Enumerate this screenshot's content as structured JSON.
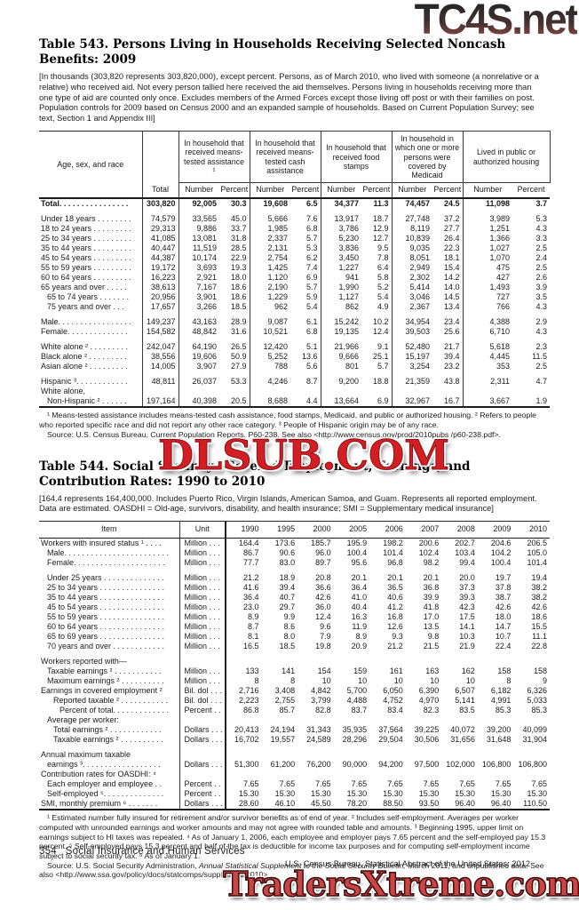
{
  "watermarks": {
    "top": "TC4S.net",
    "middle": "DLSUB.COM",
    "bottom": "TradersXtreme.com"
  },
  "table543": {
    "title": "Table 543. Persons Living in Households Receiving Selected Noncash Benefits: 2009",
    "note": "[In thousands (303,820 represents 303,820,000), except percent. Persons, as of March 2010, who lived with someone (a nonrelative or a relative) who received aid. Not every person tallied here received the aid themselves. Persons living in households receiving more than one type of aid are counted only once. Excludes members of the Armed Forces except those living off post or with their families on post. Population controls for 2009 based on Census 2000 and an expanded sample of households. Based on Current Population Survey; see text, Section 1 and Appendix III]",
    "header": {
      "stub": "Age, sex, and race",
      "total": "Total",
      "groups": [
        "In household that received means-tested assistance ¹",
        "In household that received means-tested cash assistance",
        "In household that received food stamps",
        "In household in which one or more persons were covered by Medicaid",
        "Lived in public or authorized housing"
      ],
      "sub_number": "Number",
      "sub_percent": "Percent"
    },
    "rows": [
      {
        "label": "Total. . . . . . . . . . . . . . . .",
        "cls": "bold",
        "cells": [
          "303,820",
          "92,005",
          "30.3",
          "19,608",
          "6.5",
          "34,377",
          "11.3",
          "74,457",
          "24.5",
          "11,098",
          "3.7"
        ]
      },
      {
        "label": "Under 18 years . . . . . . . .",
        "cls": "gap",
        "cells": [
          "74,579",
          "33,565",
          "45.0",
          "5,666",
          "7.6",
          "13,917",
          "18.7",
          "27,748",
          "37.2",
          "3,989",
          "5.3"
        ]
      },
      {
        "label": "18 to 24 years . . . . . . . . .",
        "cls": "",
        "cells": [
          "29,313",
          "9,886",
          "33.7",
          "1,985",
          "6.8",
          "3,786",
          "12.9",
          "8,119",
          "27.7",
          "1,251",
          "4.3"
        ]
      },
      {
        "label": "25 to 34 years . . . . . . . . .",
        "cls": "",
        "cells": [
          "41,085",
          "13,081",
          "31.8",
          "2,337",
          "5.7",
          "5,230",
          "12.7",
          "10,839",
          "26.4",
          "1,366",
          "3.3"
        ]
      },
      {
        "label": "35 to 44 years . . . . . . . . .",
        "cls": "",
        "cells": [
          "40,447",
          "11,519",
          "28.5",
          "2,131",
          "5.3",
          "3,836",
          "9.5",
          "9,035",
          "22.3",
          "1,027",
          "2.5"
        ]
      },
      {
        "label": "45 to 54 years . . . . . . . . .",
        "cls": "",
        "cells": [
          "44,387",
          "10,174",
          "22.9",
          "2,754",
          "6.2",
          "3,450",
          "7.8",
          "8,051",
          "18.1",
          "1,070",
          "2.4"
        ]
      },
      {
        "label": "55 to 59 years . . . . . . . . .",
        "cls": "",
        "cells": [
          "19,172",
          "3,693",
          "19.3",
          "1,425",
          "7.4",
          "1,227",
          "6.4",
          "2,949",
          "15.4",
          "475",
          "2.5"
        ]
      },
      {
        "label": "60 to 64 years . . . . . . . . .",
        "cls": "",
        "cells": [
          "16,223",
          "2,921",
          "18.0",
          "1,120",
          "6.9",
          "941",
          "5.8",
          "2,302",
          "14.2",
          "427",
          "2.6"
        ]
      },
      {
        "label": "65 years and over . . . . .",
        "cls": "",
        "cells": [
          "38,613",
          "7,167",
          "18.6",
          "2,190",
          "5.7",
          "1,990",
          "5.2",
          "5,414",
          "14.0",
          "1,493",
          "3.9"
        ]
      },
      {
        "label": "65 to 74 years . . . . . . .",
        "cls": "i1",
        "cells": [
          "20,956",
          "3,901",
          "18.6",
          "1,229",
          "5.9",
          "1,127",
          "5.4",
          "3,046",
          "14.5",
          "727",
          "3.5"
        ]
      },
      {
        "label": "75 years and over . . .",
        "cls": "i1",
        "cells": [
          "17,657",
          "3,266",
          "18.5",
          "962",
          "5.4",
          "862",
          "4.9",
          "2,367",
          "13.4",
          "766",
          "4.3"
        ]
      },
      {
        "label": "Male. . . . . . . . . . . . . . . . .",
        "cls": "gap",
        "cells": [
          "149,237",
          "43,163",
          "28.9",
          "9,087",
          "6.1",
          "15,242",
          "10.2",
          "34,954",
          "23.4",
          "4,388",
          "2.9"
        ]
      },
      {
        "label": "Female. . . . . . . . . . . . . .",
        "cls": "",
        "cells": [
          "154,582",
          "48,842",
          "31.6",
          "10,521",
          "6.8",
          "19,135",
          "12.4",
          "39,503",
          "25.6",
          "6,710",
          "4.3"
        ]
      },
      {
        "label": "White alone ² . . . . . . . . .",
        "cls": "gap",
        "cells": [
          "242,047",
          "64,190",
          "26.5",
          "12,420",
          "5.1",
          "21,966",
          "9.1",
          "52,480",
          "21.7",
          "5,618",
          "2.3"
        ]
      },
      {
        "label": "Black alone ² . . . . . . . . .",
        "cls": "",
        "cells": [
          "38,556",
          "19,606",
          "50.9",
          "5,252",
          "13.6",
          "9,666",
          "25.1",
          "15,197",
          "39.4",
          "4,445",
          "11.5"
        ]
      },
      {
        "label": "Asian alone ² . . . . . . . . .",
        "cls": "",
        "cells": [
          "14,005",
          "3,907",
          "27.9",
          "788",
          "5.6",
          "801",
          "5.7",
          "3,254",
          "23.2",
          "353",
          "2.5"
        ]
      },
      {
        "label": "Hispanic ³. . . . . . . . . . . .",
        "cls": "gap",
        "cells": [
          "48,811",
          "26,037",
          "53.3",
          "4,246",
          "8.7",
          "9,200",
          "18.8",
          "21,359",
          "43.8",
          "2,311",
          "4.7"
        ]
      },
      {
        "label": "White alone,",
        "cls": "",
        "cells": [
          "",
          "",
          "",
          "",
          "",
          "",
          "",
          "",
          "",
          "",
          ""
        ]
      },
      {
        "label": "Non-Hispanic ² . . . . . .",
        "cls": "i1",
        "cells": [
          "197,164",
          "40,398",
          "20.5",
          "8,688",
          "4.4",
          "13,664",
          "6.9",
          "32,967",
          "16.7",
          "3,667",
          "1.9"
        ]
      }
    ],
    "footnotes": "¹ Means-tested assistance includes means-tested cash assistance, food stamps, Medicaid, and public or authorized housing. ² Refers to people who reported specific race and did not report any other race category. ³ People of Hispanic origin may be of any race.",
    "source": "Source: U.S. Census Bureau, Current Population Reports,  P60-238. See also <http://www.census.gov/prod/2010pubs /p60-238.pdf>."
  },
  "table544": {
    "title": "Table 544. Social Security—Covered Employment, Earnings, and Contribution Rates: 1990 to 2010",
    "note": "[164.4 represents 164,400,000. Includes Puerto Rico, Virgin Islands, American Samoa, and Guam. Represents all reported employment. Data are estimated. OASDHI = Old-age, survivors, disability, and health insurance; SMI = Supplementary medical insurance]",
    "header": {
      "item": "Item",
      "unit": "Unit",
      "years": [
        "1990",
        "1995",
        "2000",
        "2005",
        "2006",
        "2007",
        "2008",
        "2009",
        "2010"
      ]
    },
    "rows": [
      {
        "label": "Workers with insured status ¹ . . . .",
        "unit": "Million . . .",
        "cls": "",
        "cells": [
          "164.4",
          "173.6",
          "185.7",
          "195.9",
          "198.2",
          "200.6",
          "202.7",
          "204.6",
          "206.5"
        ]
      },
      {
        "label": "Male. . . . . . . . . . . . . . . . . . . . . . . .",
        "unit": "Million . . .",
        "cls": "i1",
        "cells": [
          "86.7",
          "90.6",
          "96.0",
          "100.4",
          "101.4",
          "102.4",
          "103.4",
          "104.2",
          "105.0"
        ]
      },
      {
        "label": "Female. . . . . . . . . . . . . . . . . . . . .",
        "unit": "Million . . .",
        "cls": "i1",
        "cells": [
          "77.7",
          "83.0",
          "89.7",
          "95.6",
          "96.8",
          "98.2",
          "99.4",
          "100.4",
          "101.4"
        ]
      },
      {
        "label": "Under 25 years . . . . . . . . . . . . . .",
        "unit": "Million . . .",
        "cls": "i1 gap",
        "cells": [
          "21.2",
          "18.9",
          "20.8",
          "20.1",
          "20.1",
          "20.1",
          "20.0",
          "19.7",
          "19.4"
        ]
      },
      {
        "label": "25 to 34 years . . . . . . . . . . . . . . .",
        "unit": "Million . . .",
        "cls": "i1",
        "cells": [
          "41.6",
          "39.4",
          "36.6",
          "36.4",
          "36.5",
          "36.8",
          "37.3",
          "37.8",
          "38.2"
        ]
      },
      {
        "label": "35 to 44 years . . . . . . . . . . . . . . .",
        "unit": "Million . . .",
        "cls": "i1",
        "cells": [
          "36.4",
          "40.7",
          "42.6",
          "41.0",
          "40.6",
          "39.9",
          "39.3",
          "38.7",
          "38.2"
        ]
      },
      {
        "label": "45 to 54 years . . . . . . . . . . . . . . .",
        "unit": "Million . . .",
        "cls": "i1",
        "cells": [
          "23.0",
          "29.7",
          "36.0",
          "40.4",
          "41.2",
          "41.8",
          "42.3",
          "42.6",
          "42.6"
        ]
      },
      {
        "label": "55 to 59 years . . . . . . . . . . . . . . .",
        "unit": "Million . . .",
        "cls": "i1",
        "cells": [
          "8.9",
          "9.9",
          "12.4",
          "16.3",
          "16.8",
          "17.0",
          "17.5",
          "18.0",
          "18.6"
        ]
      },
      {
        "label": "60 to 64 years . . . . . . . . . . . . . . .",
        "unit": "Million . . .",
        "cls": "i1",
        "cells": [
          "8.7",
          "8.6",
          "9.6",
          "11.9",
          "12.6",
          "13.5",
          "14.1",
          "14.7",
          "15.5"
        ]
      },
      {
        "label": "65 to 69 years . . . . . . . . . . . . . . .",
        "unit": "Million . . .",
        "cls": "i1",
        "cells": [
          "8.1",
          "8.0",
          "7.9",
          "8.9",
          "9.3",
          "9.8",
          "10.3",
          "10.7",
          "11.1"
        ]
      },
      {
        "label": "70 years and over . . . . . . . . . . . .",
        "unit": "Million . . .",
        "cls": "i1",
        "cells": [
          "16.5",
          "18.5",
          "19.8",
          "20.9",
          "21.2",
          "21.5",
          "21.9",
          "22.4",
          "22.8"
        ]
      },
      {
        "label": "Workers reported with—",
        "unit": "",
        "cls": "gap",
        "cells": [
          "",
          "",
          "",
          "",
          "",
          "",
          "",
          "",
          ""
        ]
      },
      {
        "label": "Taxable earnings ²  . . . . . . . . . . .",
        "unit": "Million . . .",
        "cls": "i1",
        "cells": [
          "133",
          "141",
          "154",
          "159",
          "161",
          "163",
          "162",
          "158",
          "158"
        ]
      },
      {
        "label": "Maximum earnings ² . . . . . . . . . .",
        "unit": "Million . . .",
        "cls": "i1",
        "cells": [
          "8",
          "8",
          "10",
          "10",
          "10",
          "10",
          "10",
          "8",
          "9"
        ]
      },
      {
        "label": "Earnings in covered employment ²",
        "unit": "Bil. dol . . .",
        "cls": "",
        "cells": [
          "2,716",
          "3,408",
          "4,842",
          "5,700",
          "6,050",
          "6,390",
          "6,507",
          "6,182",
          "6,326"
        ]
      },
      {
        "label": "Reported taxable ² . . . . . . . . . . .",
        "unit": "Bil. dol . . .",
        "cls": "i2",
        "cells": [
          "2,223",
          "2,755",
          "3,799",
          "4,488",
          "4,752",
          "4,970",
          "5,141",
          "4,991",
          "5,033"
        ]
      },
      {
        "label": "Percent of total. . . . . . . . . . . . .",
        "unit": "Percent . .",
        "cls": "i3",
        "cells": [
          "86.8",
          "85.7",
          "82.8",
          "83.7",
          "83.4",
          "82.3",
          "83.5",
          "85.3",
          "85.3"
        ]
      },
      {
        "label": "Average per worker:",
        "unit": "",
        "cls": "i1",
        "cells": [
          "",
          "",
          "",
          "",
          "",
          "",
          "",
          "",
          ""
        ]
      },
      {
        "label": "Total earnings ² . . . . . . . . . . . .",
        "unit": "Dollars . . .",
        "cls": "i2",
        "cells": [
          "20,413",
          "24,194",
          "31,343",
          "35,935",
          "37,564",
          "39,225",
          "40,072",
          "39,200",
          "40,099"
        ]
      },
      {
        "label": "Taxable earnings ² . . . . . . . . . .",
        "unit": "Dollars . . .",
        "cls": "i2",
        "cells": [
          "16,702",
          "19,557",
          "24,589",
          "28,296",
          "29,504",
          "30,506",
          "31,656",
          "31,648",
          "31,904"
        ]
      },
      {
        "label": "Annual maximum taxable",
        "unit": "",
        "cls": "gap",
        "cells": [
          "",
          "",
          "",
          "",
          "",
          "",
          "",
          "",
          ""
        ]
      },
      {
        "label": "earnings ³. . . . . . . . . . . . . . . . . .",
        "unit": "Dollars . . .",
        "cls": "i1",
        "cells": [
          "51,300",
          "61,200",
          "76,200",
          "90,000",
          "94,200",
          "97,500",
          "102,000",
          "106,800",
          "106,800"
        ]
      },
      {
        "label": "Contribution rates for OASDHI: ⁴",
        "unit": "",
        "cls": "",
        "cells": [
          "",
          "",
          "",
          "",
          "",
          "",
          "",
          "",
          ""
        ]
      },
      {
        "label": "Each employer and employee . .",
        "unit": "Percent . .",
        "cls": "i1",
        "cells": [
          "7.65",
          "7.65",
          "7.65",
          "7.65",
          "7.65",
          "7.65",
          "7.65",
          "7.65",
          "7.65"
        ]
      },
      {
        "label": "Self-employed ⁵. . . . . . . . . . . . . .",
        "unit": "Percent . .",
        "cls": "i1",
        "cells": [
          "15.30",
          "15.30",
          "15.30",
          "15.30",
          "15.30",
          "15.30",
          "15.30",
          "15.30",
          "15.30"
        ]
      },
      {
        "label": "SMI, monthly premium ⁶ . . . . . . .",
        "unit": "Dollars . . .",
        "cls": "",
        "cells": [
          "28.60",
          "46.10",
          "45.50",
          "78.20",
          "88.50",
          "93.50",
          "96.40",
          "96.40",
          "110.50"
        ]
      }
    ],
    "footnotes": "¹ Estimated number fully insured for retirement and/or survivor benefits as of end of year. ² Includes self-employment. Averages per worker computed with unrounded earnings and worker amounts and may not agree with rounded table and amounts. ³ Beginning 1995, upper limit on earnings subject to HI taxes was repealed. ⁴ As of January 1, 2006, each employee and employer pays 7.65 percent and the self-employed pay 15.3 percent. ⁵ Self-employed pays 15.3 percent and half of the tax is deductible for income tax purposes and for computing self-employment income subject to social security tax. ⁶ As of January 1.",
    "source_prefix": "Source: U.S. Social Security Administration, ",
    "source_italic": "Annual Statistical Supplement to the Social Security Bulletin,",
    "source_suffix": " March 2011, and unpublished data. See also <http://www.ssa.gov/policy/docs/statcomps/supplement/2010>."
  },
  "footer": {
    "page_number": "354",
    "section": "Social Insurance and Human Services",
    "credit": "U.S. Census Bureau, Statistical Abstract of the United States: 2012"
  }
}
